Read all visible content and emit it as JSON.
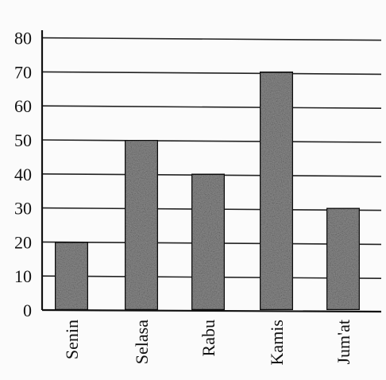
{
  "chart_data": {
    "type": "bar",
    "title": "",
    "xlabel": "",
    "ylabel": "",
    "categories": [
      "Senin",
      "Selasa",
      "Rabu",
      "Kamis",
      "Jum'at"
    ],
    "values": [
      20,
      50,
      40,
      70,
      30
    ],
    "ylim": [
      0,
      80
    ],
    "yticks": [
      0,
      10,
      20,
      30,
      40,
      50,
      60,
      70,
      80
    ],
    "grid": true,
    "legend": "none",
    "bar_color": "#8a8a8a",
    "bar_outline": "#111111"
  }
}
